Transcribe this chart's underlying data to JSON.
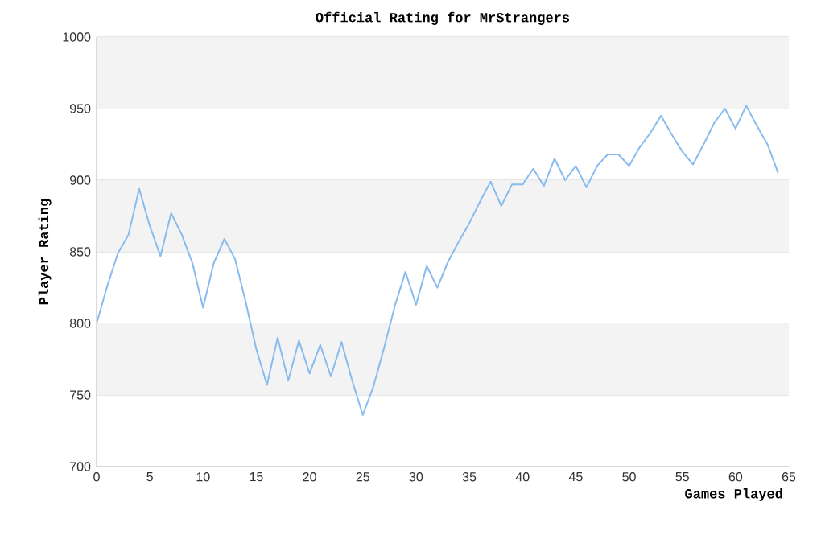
{
  "chart_data": {
    "type": "line",
    "title": "Official Rating for MrStrangers",
    "xlabel": "Games Played",
    "ylabel": "Player Rating",
    "x": [
      0,
      1,
      2,
      3,
      4,
      5,
      6,
      7,
      8,
      9,
      10,
      11,
      12,
      13,
      14,
      15,
      16,
      17,
      18,
      19,
      20,
      21,
      22,
      23,
      24,
      25,
      26,
      27,
      28,
      29,
      30,
      31,
      32,
      33,
      34,
      35,
      36,
      37,
      38,
      39,
      40,
      41,
      42,
      43,
      44,
      45,
      46,
      47,
      48,
      49,
      50,
      51,
      52,
      53,
      54,
      55,
      56,
      57,
      58,
      59,
      60,
      61,
      62,
      63,
      64
    ],
    "series": [
      {
        "color": "#88bbee",
        "values": [
          800,
          826,
          849,
          862,
          894,
          868,
          847,
          877,
          862,
          842,
          811,
          842,
          859,
          845,
          815,
          782,
          757,
          790,
          760,
          788,
          765,
          785,
          763,
          787,
          760,
          736,
          756,
          783,
          812,
          836,
          813,
          840,
          825,
          843,
          857,
          870,
          885,
          899,
          882,
          897,
          897,
          908,
          896,
          915,
          900,
          910,
          895,
          910,
          918,
          918,
          910,
          923,
          933,
          945,
          932,
          920,
          911,
          925,
          940,
          950,
          936,
          952,
          938,
          925,
          905
        ]
      }
    ],
    "xlim": [
      0,
      65
    ],
    "ylim": [
      700,
      1000
    ],
    "xticks": [
      0,
      5,
      10,
      15,
      20,
      25,
      30,
      35,
      40,
      45,
      50,
      55,
      60,
      65
    ],
    "yticks": [
      700,
      750,
      800,
      850,
      900,
      950,
      1000
    ],
    "bands": [
      {
        "axis": "y",
        "from": 750,
        "to": 800,
        "color": "#f3f3f3"
      },
      {
        "axis": "y",
        "from": 850,
        "to": 900,
        "color": "#f3f3f3"
      },
      {
        "axis": "y",
        "from": 950,
        "to": 1000,
        "color": "#f3f3f3"
      }
    ],
    "grid": "y",
    "marker": "none",
    "line_style": "solid"
  }
}
